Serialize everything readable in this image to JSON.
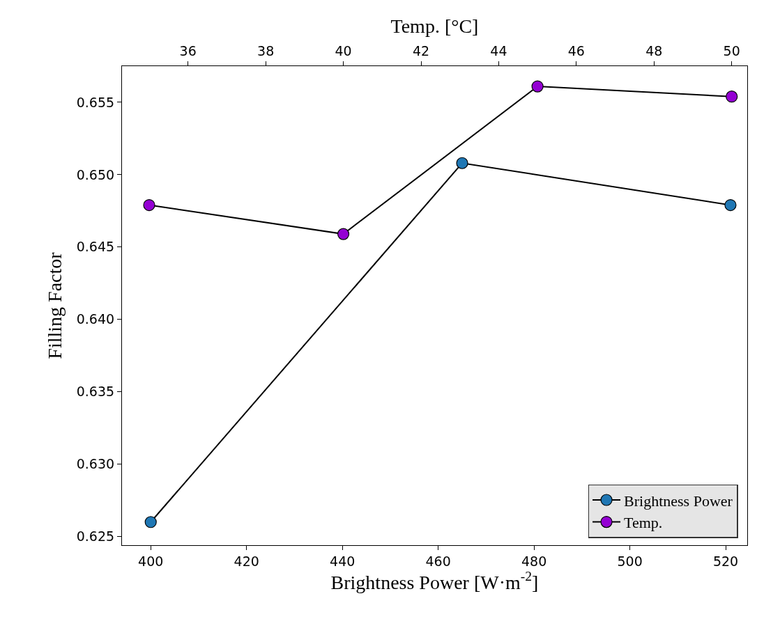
{
  "chart_data": {
    "type": "line",
    "xlabel": "Brightness Power [W·m$^{-2}$]",
    "ylabel": "Filling Factor",
    "x2label": "Temp. [°C]",
    "xlim": [
      394,
      524.5
    ],
    "xticks": [
      400,
      420,
      440,
      460,
      480,
      500,
      520
    ],
    "x2lim": [
      34.3,
      50.4
    ],
    "x2ticks": [
      36,
      38,
      40,
      42,
      44,
      46,
      48,
      50
    ],
    "ylim": [
      0.6244,
      0.6575
    ],
    "yticks": [
      0.625,
      {
        "value": 0.63,
        "label": "0.630"
      },
      0.635,
      {
        "value": 0.64,
        "label": "0.640"
      },
      0.645,
      {
        "value": 0.65,
        "label": "0.650"
      },
      0.655
    ],
    "series": [
      {
        "name": "Brightness Power",
        "color": "#1f77b4",
        "x": [
          400,
          465,
          521
        ],
        "values": [
          0.626,
          0.6508,
          0.6479
        ]
      },
      {
        "name": "Temp.",
        "color": "#9400d3",
        "axis": "x2",
        "x": [
          35,
          40,
          45,
          50
        ],
        "values": [
          0.6479,
          0.6459,
          0.6561,
          0.6554
        ]
      }
    ],
    "marker": "circle",
    "line_style": "solid",
    "legend": "bottom right"
  }
}
